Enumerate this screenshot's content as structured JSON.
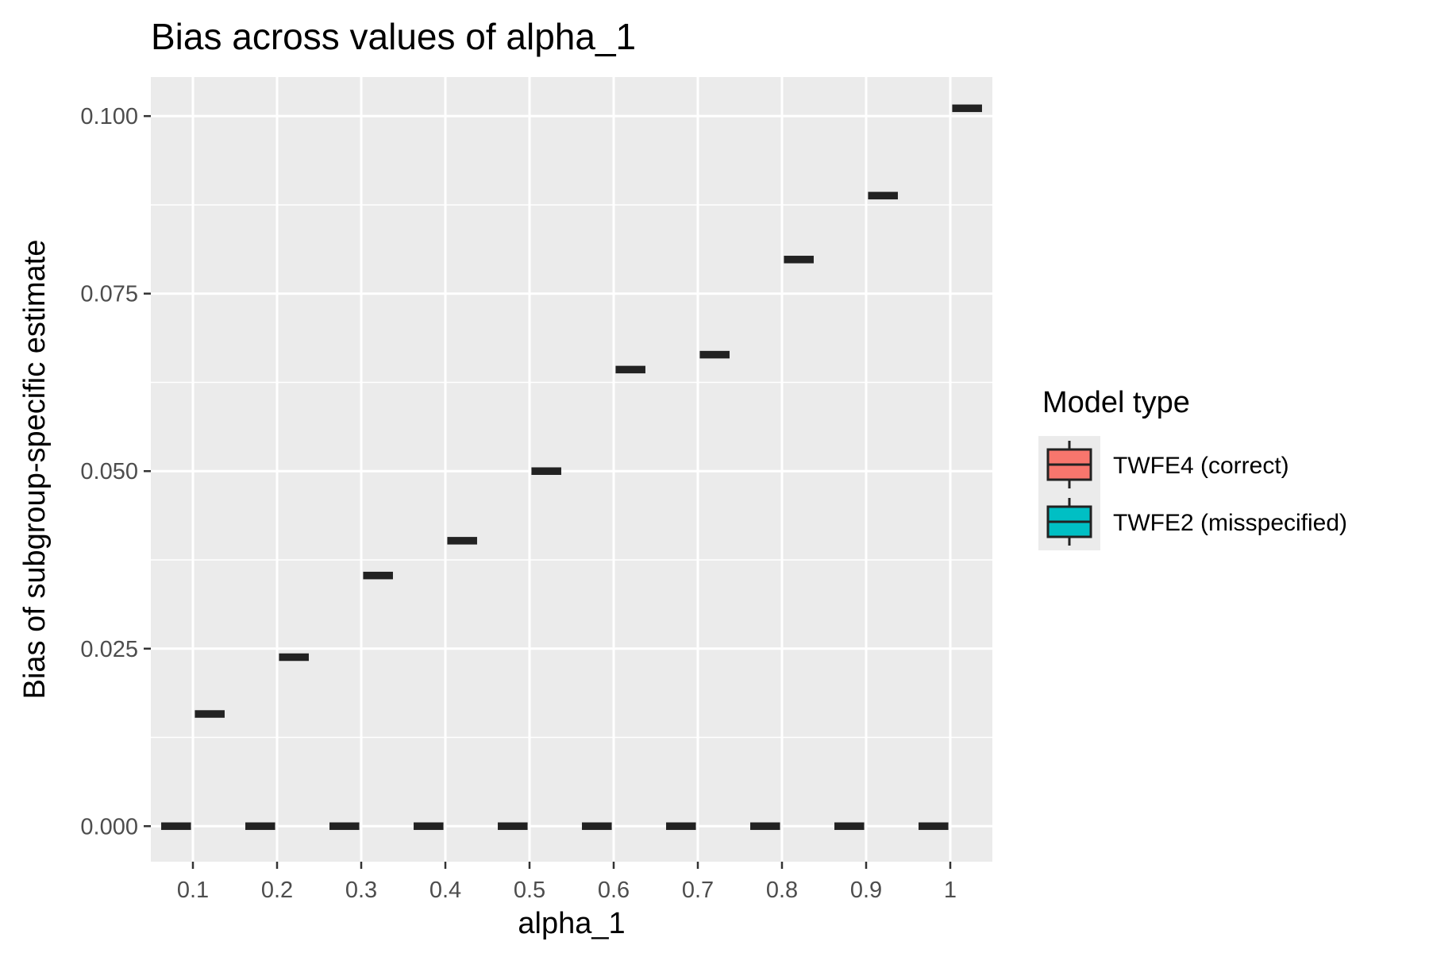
{
  "chart_data": {
    "type": "boxplot",
    "title": "Bias across values of alpha_1",
    "xlabel": "alpha_1",
    "ylabel": "Bias of subgroup-specific estimate",
    "categories": [
      "0.1",
      "0.2",
      "0.3",
      "0.4",
      "0.5",
      "0.6",
      "0.7",
      "0.8",
      "0.9",
      "1"
    ],
    "ylim": [
      -0.005,
      0.1055
    ],
    "y_ticks": [
      0.0,
      0.025,
      0.05,
      0.075,
      0.1
    ],
    "y_tick_labels": [
      "0.000",
      "0.025",
      "0.050",
      "0.075",
      "0.100"
    ],
    "grid": true,
    "legend": {
      "title": "Model type",
      "position": "right"
    },
    "series": [
      {
        "name": "TWFE4 (correct)",
        "color": "#F8766D",
        "values": [
          0.0,
          0.0,
          0.0,
          0.0,
          0.0,
          0.0,
          0.0,
          0.0,
          0.0,
          0.0
        ]
      },
      {
        "name": "TWFE2 (misspecified)",
        "color": "#00BFC4",
        "values": [
          0.0158,
          0.0238,
          0.0353,
          0.0402,
          0.05,
          0.0643,
          0.0664,
          0.0798,
          0.0888,
          0.1011
        ]
      }
    ]
  }
}
